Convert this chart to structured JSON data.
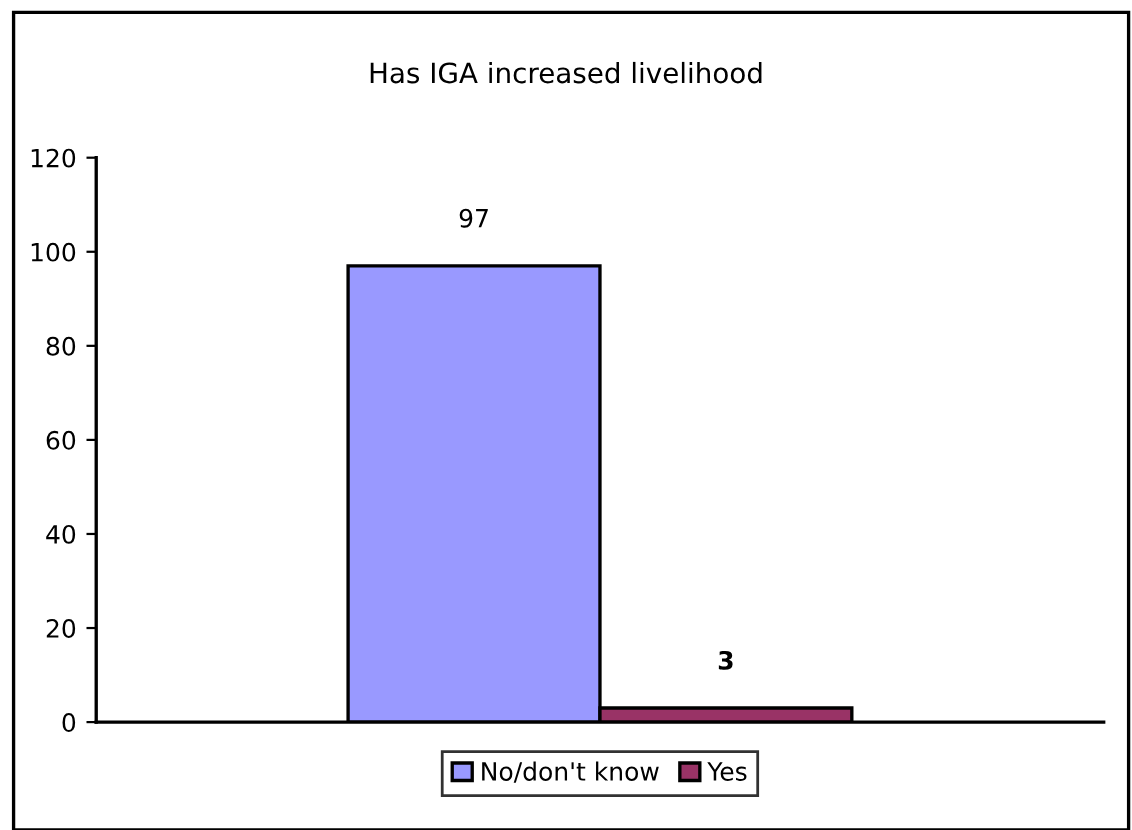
{
  "chart_data": {
    "type": "bar",
    "title": "Has IGA increased livelihood",
    "categories": [
      null
    ],
    "series": [
      {
        "name": "No/don't know",
        "color": "#9999ff",
        "values": [
          97
        ]
      },
      {
        "name": "Yes",
        "color": "#993366",
        "values": [
          3
        ]
      }
    ],
    "ylim": [
      0,
      120
    ],
    "yticks": [
      0,
      20,
      40,
      60,
      80,
      100,
      120
    ],
    "grid": false,
    "legend": "bottom",
    "data_labels": true
  }
}
